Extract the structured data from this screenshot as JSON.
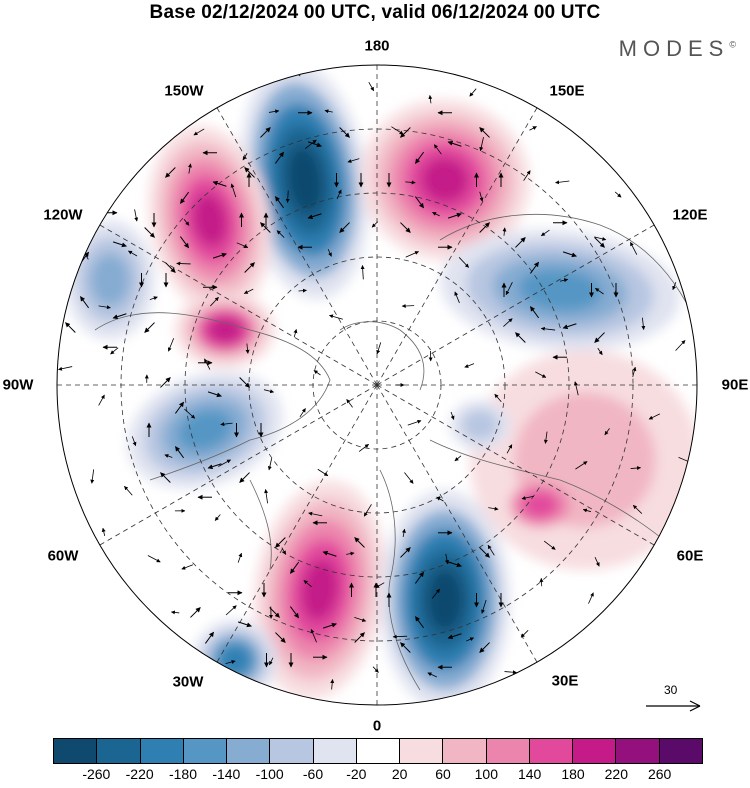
{
  "title": "Base 02/12/2024 00 UTC, valid 06/12/2024 00 UTC",
  "brand": {
    "name": "MODES",
    "mark": "©"
  },
  "map": {
    "projection": "north polar stereographic",
    "longitude_labels": {
      "top": "180",
      "top_right": "150E",
      "right_upper": "120E",
      "right": "90E",
      "right_lower": "60E",
      "bottom_right": "30E",
      "bottom": "0",
      "bottom_left": "30W",
      "left_lower": "60W",
      "left": "90W",
      "left_upper": "120W",
      "top_left": "150W"
    },
    "reference_vector": {
      "value": "30"
    }
  },
  "colorbar": {
    "colors": [
      "#0f4a6e",
      "#1a6591",
      "#2f7fb2",
      "#5596c4",
      "#86acd2",
      "#b7c6e1",
      "#e0e3f0",
      "#ffffff",
      "#f7dde0",
      "#f1b6c3",
      "#ec85ad",
      "#e2499d",
      "#c41b89",
      "#94107c",
      "#5a0a68"
    ],
    "tick_labels": [
      "-260",
      "-220",
      "-180",
      "-140",
      "-100",
      "-60",
      "-20",
      "20",
      "60",
      "100",
      "140",
      "180",
      "220",
      "260"
    ]
  }
}
